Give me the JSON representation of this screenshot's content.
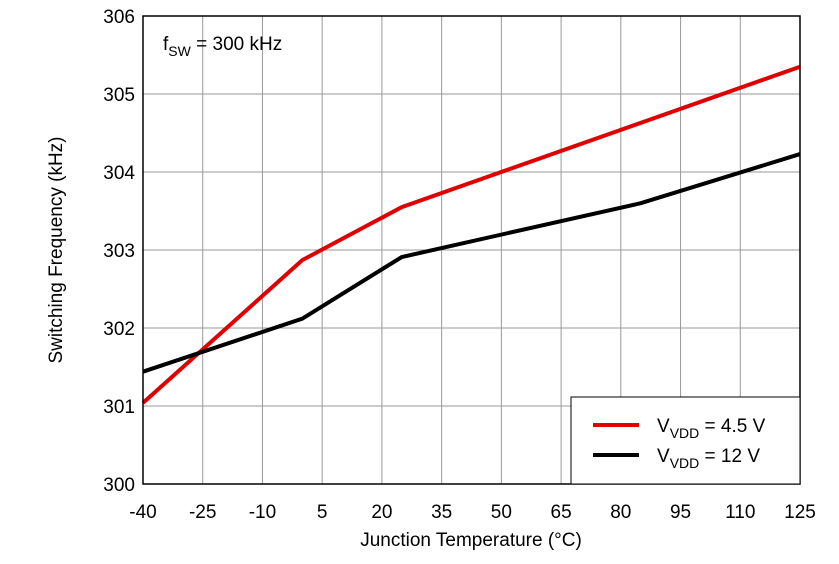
{
  "chart_data": {
    "type": "line",
    "xlabel": "Junction Temperature (°C)",
    "ylabel": "Switching Frequency (kHz)",
    "annotation": [
      "f",
      "SW",
      " = 300 kHz"
    ],
    "xlim": [
      -40,
      125
    ],
    "xticks": [
      -40,
      -25,
      -10,
      5,
      20,
      35,
      50,
      65,
      80,
      95,
      110,
      125
    ],
    "ylim": [
      300,
      306
    ],
    "yticks": [
      300,
      301,
      302,
      303,
      304,
      305,
      306
    ],
    "grid": true,
    "legend": "lower right",
    "series": [
      {
        "name": [
          "V",
          "VDD",
          " = 4.5 V"
        ],
        "color": "#e00000",
        "x": [
          -40,
          0,
          25,
          125
        ],
        "values": [
          301.04,
          302.87,
          303.55,
          305.35
        ]
      },
      {
        "name": [
          "V",
          "VDD",
          " = 12 V"
        ],
        "color": "#000000",
        "x": [
          -40,
          0,
          25,
          85,
          125
        ],
        "values": [
          301.44,
          302.12,
          302.91,
          303.6,
          304.23
        ]
      }
    ]
  }
}
